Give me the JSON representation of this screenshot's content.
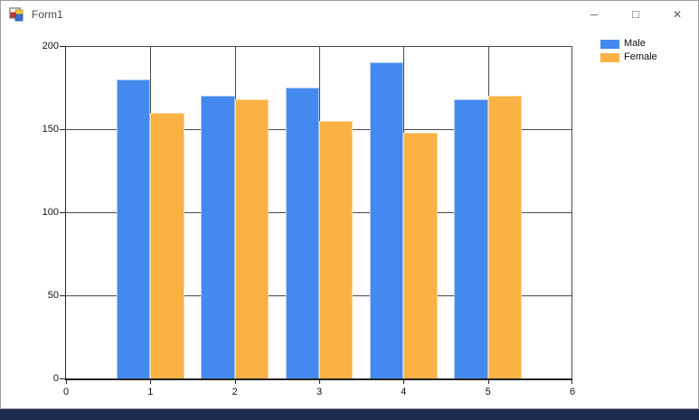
{
  "window": {
    "title": "Form1",
    "buttons": [
      {
        "name": "minimize",
        "glyph": "─"
      },
      {
        "name": "maximize",
        "glyph": "□"
      },
      {
        "name": "close",
        "glyph": "✕"
      }
    ]
  },
  "chart_data": {
    "type": "bar",
    "x": [
      1,
      2,
      3,
      4,
      5
    ],
    "series": [
      {
        "name": "Male",
        "color": "#4489EE",
        "values": [
          180,
          170,
          175,
          190,
          168
        ]
      },
      {
        "name": "Female",
        "color": "#FAB244",
        "values": [
          160,
          168,
          155,
          148,
          170
        ]
      }
    ],
    "title": "",
    "xlabel": "",
    "ylabel": "",
    "xlim": [
      0,
      6
    ],
    "ylim": [
      0,
      200
    ],
    "x_ticks": [
      0,
      1,
      2,
      3,
      4,
      5,
      6
    ],
    "y_ticks": [
      0,
      50,
      100,
      150,
      200
    ],
    "grid": true,
    "legend_position": "top-right",
    "bar_width": 0.4
  }
}
